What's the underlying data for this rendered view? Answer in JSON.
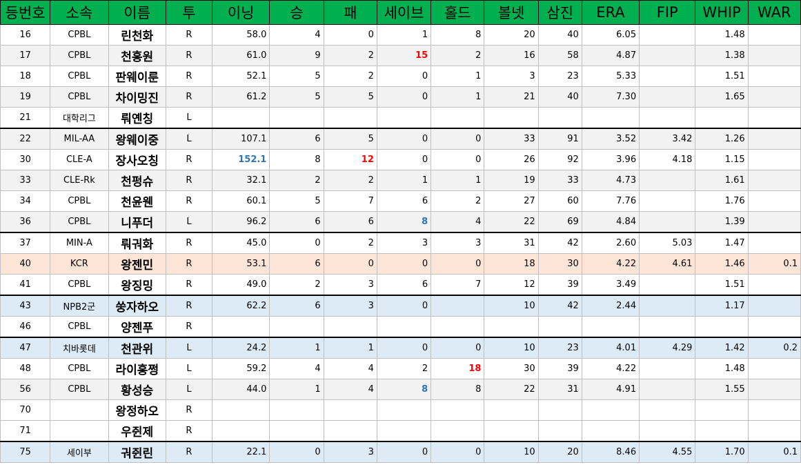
{
  "colors": {
    "header_bg": "#00b050",
    "highlight_orange": "#fce4d6",
    "highlight_blue": "#ddebf7",
    "alt_gray": "#f2f2f2",
    "emph_red": "#ff0000",
    "emph_blue": "#2f75b5"
  },
  "headers": [
    "등번호",
    "소속",
    "이름",
    "투",
    "이닝",
    "승",
    "패",
    "세이브",
    "홀드",
    "볼넷",
    "삼진",
    "ERA",
    "FIP",
    "WHIP",
    "WAR"
  ],
  "rows": [
    {
      "cells": [
        "16",
        "CPBL",
        "린천화",
        "R",
        "58.0",
        "4",
        "0",
        "1",
        "8",
        "20",
        "40",
        "6.05",
        "",
        "1.48",
        ""
      ],
      "style": "",
      "emph": {}
    },
    {
      "cells": [
        "17",
        "CPBL",
        "천홍원",
        "R",
        "61.0",
        "9",
        "2",
        "15",
        "2",
        "16",
        "58",
        "4.87",
        "",
        "1.38",
        ""
      ],
      "style": "hl-gray",
      "emph": {
        "7": "red"
      }
    },
    {
      "cells": [
        "18",
        "CPBL",
        "판웨이룬",
        "R",
        "52.1",
        "5",
        "2",
        "0",
        "1",
        "3",
        "23",
        "5.33",
        "",
        "1.51",
        ""
      ],
      "style": "",
      "emph": {}
    },
    {
      "cells": [
        "19",
        "CPBL",
        "차이밍진",
        "R",
        "61.2",
        "5",
        "5",
        "0",
        "1",
        "21",
        "40",
        "7.30",
        "",
        "1.65",
        ""
      ],
      "style": "hl-gray",
      "emph": {}
    },
    {
      "cells": [
        "21",
        "대학리그",
        "뤄옌칭",
        "L",
        "",
        "",
        "",
        "",
        "",
        "",
        "",
        "",
        "",
        "",
        ""
      ],
      "style": "",
      "emph": {}
    },
    {
      "cells": [
        "22",
        "MIL-AA",
        "왕웨이중",
        "L",
        "107.1",
        "6",
        "5",
        "0",
        "0",
        "33",
        "91",
        "3.52",
        "3.42",
        "1.26",
        ""
      ],
      "style": "hl-gray grp-start",
      "emph": {}
    },
    {
      "cells": [
        "30",
        "CLE-A",
        "장사오칭",
        "R",
        "152.1",
        "8",
        "12",
        "0",
        "0",
        "26",
        "92",
        "3.96",
        "4.18",
        "1.15",
        ""
      ],
      "style": "",
      "emph": {
        "4": "blue",
        "6": "red"
      }
    },
    {
      "cells": [
        "33",
        "CLE-Rk",
        "천펑슈",
        "R",
        "32.1",
        "2",
        "2",
        "1",
        "1",
        "19",
        "33",
        "4.73",
        "",
        "1.61",
        ""
      ],
      "style": "hl-gray",
      "emph": {}
    },
    {
      "cells": [
        "34",
        "CPBL",
        "천윤웬",
        "R",
        "60.1",
        "5",
        "7",
        "6",
        "2",
        "27",
        "60",
        "7.76",
        "",
        "1.76",
        ""
      ],
      "style": "",
      "emph": {}
    },
    {
      "cells": [
        "36",
        "CPBL",
        "니푸더",
        "L",
        "96.2",
        "6",
        "6",
        "8",
        "4",
        "22",
        "69",
        "4.84",
        "",
        "1.39",
        ""
      ],
      "style": "hl-gray",
      "emph": {
        "7": "blue"
      }
    },
    {
      "cells": [
        "37",
        "MIN-A",
        "뤄궈화",
        "R",
        "45.0",
        "0",
        "2",
        "3",
        "3",
        "31",
        "42",
        "2.60",
        "5.03",
        "1.47",
        ""
      ],
      "style": "grp-start",
      "emph": {}
    },
    {
      "cells": [
        "40",
        "KCR",
        "왕젠민",
        "R",
        "53.1",
        "6",
        "0",
        "0",
        "0",
        "18",
        "30",
        "4.22",
        "4.61",
        "1.46",
        "0.1"
      ],
      "style": "hl-orange",
      "emph": {}
    },
    {
      "cells": [
        "41",
        "CPBL",
        "왕징밍",
        "R",
        "49.0",
        "2",
        "3",
        "6",
        "7",
        "12",
        "39",
        "3.49",
        "",
        "1.51",
        ""
      ],
      "style": "",
      "emph": {}
    },
    {
      "cells": [
        "43",
        "NPB2군",
        "쑹자하오",
        "R",
        "62.2",
        "6",
        "3",
        "0",
        "",
        "10",
        "42",
        "2.44",
        "",
        "1.17",
        ""
      ],
      "style": "hl-blue grp-start",
      "emph": {}
    },
    {
      "cells": [
        "46",
        "CPBL",
        "양젠푸",
        "R",
        "",
        "",
        "",
        "",
        "",
        "",
        "",
        "",
        "",
        "",
        ""
      ],
      "style": "",
      "emph": {}
    },
    {
      "cells": [
        "47",
        "치바롯데",
        "천관위",
        "L",
        "24.2",
        "1",
        "1",
        "0",
        "0",
        "10",
        "23",
        "4.01",
        "4.29",
        "1.42",
        "0.2"
      ],
      "style": "hl-blue grp-start",
      "emph": {}
    },
    {
      "cells": [
        "48",
        "CPBL",
        "라이홍쩡",
        "L",
        "59.2",
        "4",
        "4",
        "2",
        "18",
        "30",
        "39",
        "4.22",
        "",
        "1.48",
        ""
      ],
      "style": "",
      "emph": {
        "8": "red"
      }
    },
    {
      "cells": [
        "56",
        "CPBL",
        "황성승",
        "L",
        "44.0",
        "1",
        "4",
        "8",
        "8",
        "22",
        "31",
        "4.91",
        "",
        "1.55",
        ""
      ],
      "style": "hl-gray",
      "emph": {
        "7": "blue"
      }
    },
    {
      "cells": [
        "70",
        "",
        "왕정하오",
        "R",
        "",
        "",
        "",
        "",
        "",
        "",
        "",
        "",
        "",
        "",
        ""
      ],
      "style": "",
      "emph": {}
    },
    {
      "cells": [
        "71",
        "",
        "우쥔제",
        "R",
        "",
        "",
        "",
        "",
        "",
        "",
        "",
        "",
        "",
        "",
        ""
      ],
      "style": "",
      "emph": {}
    },
    {
      "cells": [
        "75",
        "세이부",
        "궈쥔린",
        "R",
        "22.1",
        "0",
        "3",
        "0",
        "0",
        "10",
        "20",
        "8.46",
        "4.55",
        "1.70",
        "0.1"
      ],
      "style": "hl-blue grp-start",
      "emph": {}
    }
  ]
}
